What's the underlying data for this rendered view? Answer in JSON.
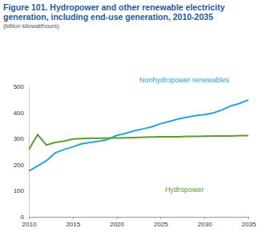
{
  "chart_data": {
    "type": "line",
    "title": "Figure 101. Hydropower and other renewable electricity generation, including end-use generation, 2010-2035",
    "subtitle": "(billion kilowatthours)",
    "x": [
      2010,
      2011,
      2012,
      2013,
      2014,
      2015,
      2016,
      2017,
      2018,
      2019,
      2020,
      2021,
      2022,
      2023,
      2024,
      2025,
      2026,
      2027,
      2028,
      2029,
      2030,
      2031,
      2032,
      2033,
      2034,
      2035
    ],
    "series": [
      {
        "name": "Nonhydropower renewables",
        "color": "#29a3dc",
        "values": [
          175,
          195,
          215,
          245,
          258,
          268,
          280,
          285,
          290,
          297,
          312,
          320,
          330,
          337,
          345,
          357,
          366,
          375,
          382,
          388,
          392,
          398,
          410,
          425,
          435,
          448
        ]
      },
      {
        "name": "Hydropower",
        "color": "#5a9e2f",
        "values": [
          258,
          315,
          275,
          285,
          290,
          298,
          300,
          301,
          301,
          302,
          302,
          303,
          304,
          305,
          306,
          307,
          307,
          307,
          308,
          308,
          309,
          310,
          310,
          310,
          311,
          311
        ]
      }
    ],
    "xlim": [
      2010,
      2035
    ],
    "xticks": [
      2010,
      2015,
      2020,
      2025,
      2030,
      2035
    ],
    "ylim": [
      0,
      500
    ],
    "yticks": [
      0,
      100,
      200,
      300,
      400,
      500
    ],
    "grid": false
  }
}
